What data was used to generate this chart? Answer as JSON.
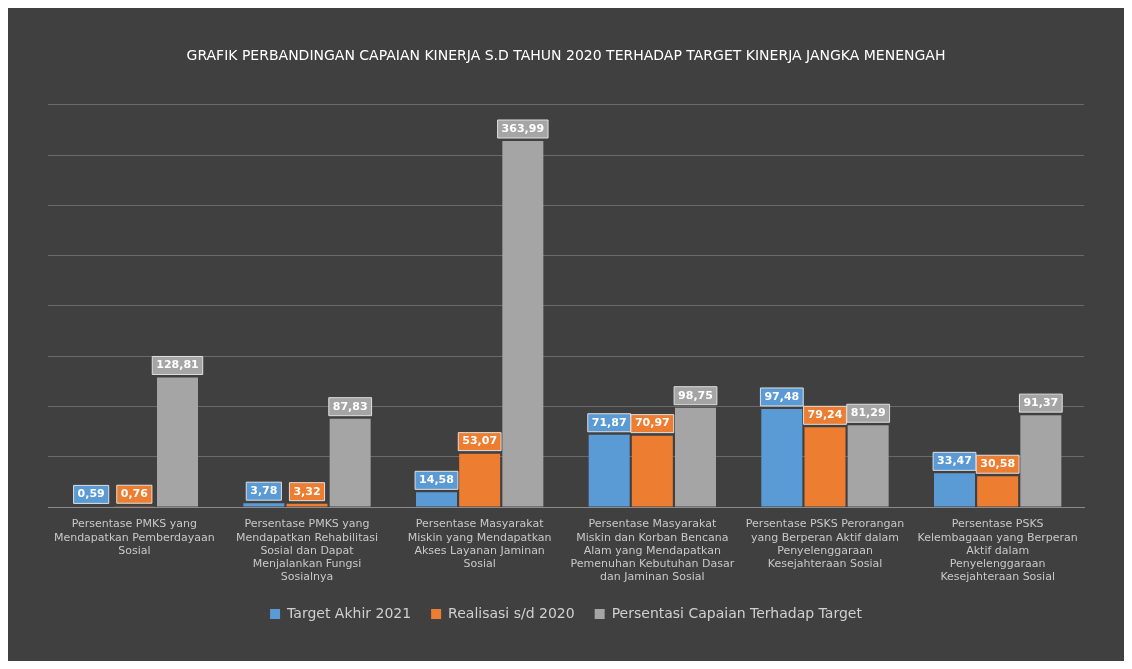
{
  "chart_data": {
    "type": "bar",
    "title": "GRAFIK PERBANDINGAN CAPAIAN KINERJA S.D TAHUN 2020 TERHADAP TARGET KINERJA JANGKA MENENGAH",
    "categories": [
      "Persentase PMKS yang Mendapatkan Pemberdayaan Sosial",
      "Persentase PMKS yang Mendapatkan Rehabilitasi Sosial dan Dapat Menjalankan Fungsi Sosialnya",
      "Persentase Masyarakat Miskin yang Mendapatkan Akses Layanan Jaminan Sosial",
      "Persentase Masyarakat Miskin dan Korban Bencana Alam yang Mendapatkan Pemenuhan Kebutuhan Dasar dan Jaminan Sosial",
      "Persentase PSKS Perorangan yang Berperan Aktif dalam Penyelenggaraan Kesejahteraan Sosial",
      "Persentase PSKS Kelembagaan yang Berperan Aktif dalam Penyelenggaraan Kesejahteraan Sosial"
    ],
    "series": [
      {
        "name": "Target Akhir 2021",
        "color": "#5b9bd5",
        "values": [
          0.59,
          3.78,
          14.58,
          71.87,
          97.48,
          33.47
        ],
        "value_labels": [
          "0,59",
          "3,78",
          "14,58",
          "71,87",
          "97,48",
          "33,47"
        ]
      },
      {
        "name": "Realisasi s/d 2020",
        "color": "#ed7d31",
        "values": [
          0.76,
          3.32,
          53.07,
          70.97,
          79.24,
          30.58
        ],
        "value_labels": [
          "0,76",
          "3,32",
          "53,07",
          "70,97",
          "79,24",
          "30,58"
        ]
      },
      {
        "name": "Persentasi Capaian Terhadap Target",
        "color": "#a5a5a5",
        "values": [
          128.81,
          87.83,
          363.99,
          98.75,
          81.29,
          91.37
        ],
        "value_labels": [
          "128,81",
          "87,83",
          "363,99",
          "98,75",
          "81,29",
          "91,37"
        ]
      }
    ],
    "tick_labels": "x",
    "grid": "y",
    "legend": "bottom"
  }
}
